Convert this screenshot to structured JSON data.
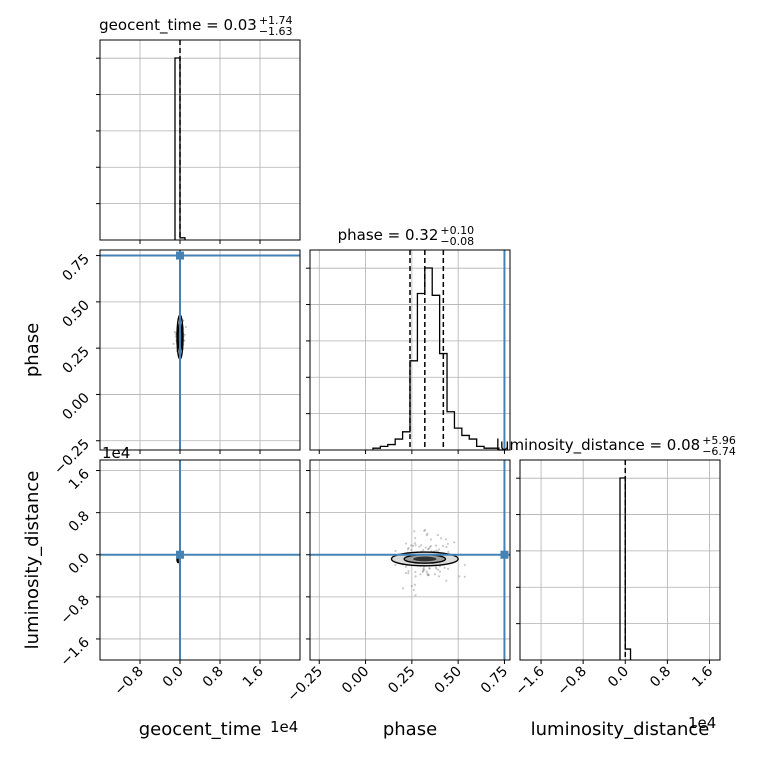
{
  "chart_data": {
    "type": "corner",
    "parameters": [
      "geocent_time",
      "phase",
      "luminosity_distance"
    ],
    "truth_color": "#4682b4",
    "titles": [
      {
        "param": "geocent_time",
        "text": "geocent_time = 0.03",
        "sup": "+1.74",
        "sub": "−1.63"
      },
      {
        "param": "phase",
        "text": "phase = 0.32",
        "sup": "+0.10",
        "sub": "−0.08"
      },
      {
        "param": "luminosity_distance",
        "text": "luminosity_distance = 0.08",
        "sup": "+5.96",
        "sub": "−6.74"
      }
    ],
    "axes": {
      "geocent_time": {
        "range": [
          -1.6,
          2.4
        ],
        "ticks": [
          -0.8,
          0.0,
          0.8,
          1.6
        ],
        "tick_labels": [
          "−0.8",
          "0.0",
          "0.8",
          "1.6"
        ],
        "offset": "1e4",
        "label": "geocent_time"
      },
      "phase": {
        "range": [
          -0.3,
          0.78
        ],
        "ticks": [
          -0.25,
          0.0,
          0.25,
          0.5,
          0.75
        ],
        "tick_labels": [
          "−0.25",
          "0.00",
          "0.25",
          "0.50",
          "0.75"
        ],
        "label": "phase"
      },
      "luminosity_distance": {
        "range": [
          -2.0,
          1.8
        ],
        "ticks": [
          -1.6,
          -0.8,
          0.0,
          0.8,
          1.6
        ],
        "tick_labels": [
          "−1.6",
          "−0.8",
          "0.0",
          "0.8",
          "1.6"
        ],
        "offset": "1e4",
        "label": "luminosity_distance"
      }
    },
    "truths": {
      "geocent_time": 0.0,
      "phase": 0.75,
      "luminosity_distance": 0.0
    },
    "histograms": {
      "geocent_time": {
        "bin_edges": [
          -0.1,
          0.0,
          0.1
        ],
        "counts": [
          1.0,
          0.012
        ],
        "quantiles": [
          0.0
        ]
      },
      "phase": {
        "bin_edges": [
          0.04,
          0.08,
          0.12,
          0.16,
          0.2,
          0.24,
          0.28,
          0.32,
          0.36,
          0.4,
          0.44,
          0.48,
          0.52,
          0.56,
          0.6,
          0.64,
          0.68,
          0.72,
          0.76
        ],
        "counts": [
          0.01,
          0.02,
          0.03,
          0.06,
          0.1,
          0.49,
          0.86,
          1.0,
          0.85,
          0.53,
          0.21,
          0.12,
          0.08,
          0.06,
          0.02,
          0.01,
          0.01,
          0.0
        ],
        "quantiles": [
          0.24,
          0.32,
          0.42
        ]
      },
      "luminosity_distance": {
        "bin_edges": [
          -0.1,
          0.0,
          0.1
        ],
        "counts": [
          1.0,
          0.06
        ],
        "quantiles": [
          0.0
        ]
      }
    }
  }
}
